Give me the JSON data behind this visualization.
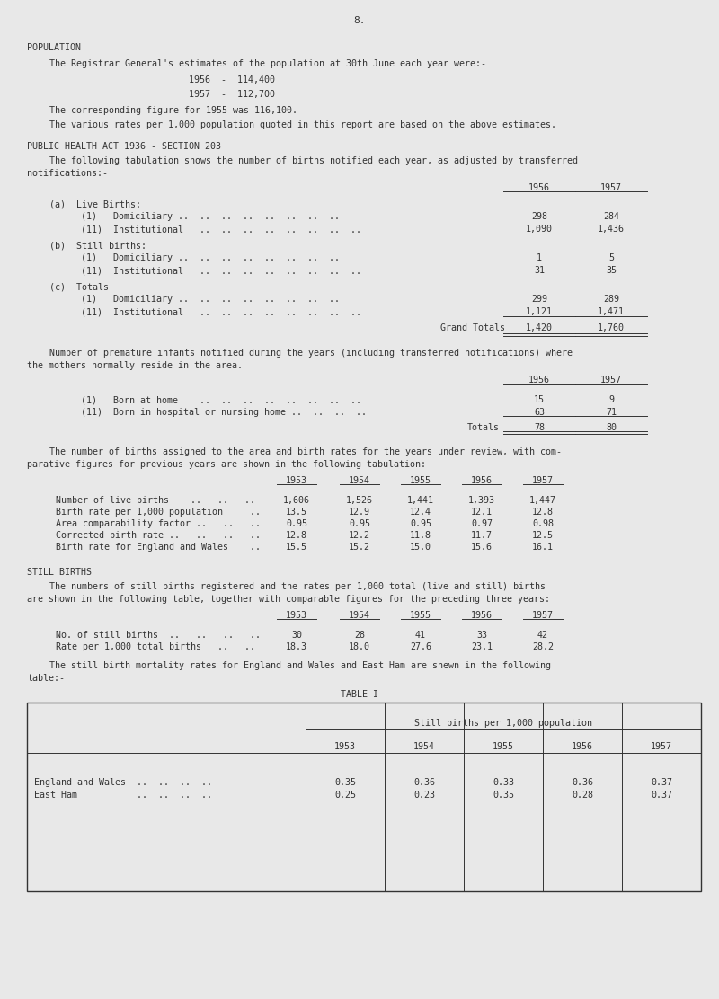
{
  "page_number": "8.",
  "bg_color": "#e8e8e8",
  "text_color": "#333333",
  "section1_heading": "POPULATION",
  "section1_intro": "The Registrar General's estimates of the population at 30th June each year were:-",
  "pop_1956_label": "1956  -  114,400",
  "pop_1957_label": "1957  -  112,700",
  "pop_1955_note": "The corresponding figure for 1955 was 116,100.",
  "pop_rates_note": "The various rates per 1,000 population quoted in this report are based on the above estimates.",
  "section2_heading": "PUBLIC HEALTH ACT 1936 - SECTION 203",
  "section2_line1": "The following tabulation shows the number of births notified each year, as adjusted by transferred",
  "section2_line2": "notifications:-",
  "col1956": "1956",
  "col1957": "1957",
  "live_label": "(a)  Live Births:",
  "dom_row": "(1)   Domiciliary ..  ..  ..  ..  ..  ..  ..  ..",
  "dom_56": "298",
  "dom_57": "284",
  "inst_row": "(11)  Institutional   ..  ..  ..  ..  ..  ..  ..  ..",
  "inst_56": "1,090",
  "inst_57": "1,436",
  "still_label": "(b)  Still births:",
  "sdom_row": "(1)   Domiciliary ..  ..  ..  ..  ..  ..  ..  ..",
  "sdom_56": "1",
  "sdom_57": "5",
  "sinst_row": "(11)  Institutional   ..  ..  ..  ..  ..  ..  ..  ..",
  "sinst_56": "31",
  "sinst_57": "35",
  "totals_label": "(c)  Totals",
  "tdom_row": "(1)   Domiciliary ..  ..  ..  ..  ..  ..  ..  ..",
  "tdom_56": "299",
  "tdom_57": "289",
  "tinst_row": "(11)  Institutional   ..  ..  ..  ..  ..  ..  ..  ..",
  "tinst_56": "1,121",
  "tinst_57": "1,471",
  "grand_label": "Grand Totals",
  "grand_56": "1,420",
  "grand_57": "1,760",
  "prem_line1": "Number of premature infants notified during the years (including transferred notifications) where",
  "prem_line2": "the mothers normally reside in the area.",
  "prem_home_row": "(1)   Born at home    ..  ..  ..  ..  ..  ..  ..  ..",
  "prem_home_56": "15",
  "prem_home_57": "9",
  "prem_hosp_row": "(11)  Born in hospital or nursing home ..  ..  ..  ..",
  "prem_hosp_56": "63",
  "prem_hosp_57": "71",
  "prem_tot_label": "Totals",
  "prem_tot_56": "78",
  "prem_tot_57": "80",
  "births_line1": "The number of births assigned to the area and birth rates for the years under review, with com-",
  "births_line2": "parative figures for previous years are shown in the following tabulation:",
  "births_years": [
    "1953",
    "1954",
    "1955",
    "1956",
    "1957"
  ],
  "births_rows": [
    {
      "label": "Number of live births    ..   ..   ..",
      "values": [
        "1,606",
        "1,526",
        "1,441",
        "1,393",
        "1,447"
      ]
    },
    {
      "label": "Birth rate per 1,000 population     ..",
      "values": [
        "13.5",
        "12.9",
        "12.4",
        "12.1",
        "12.8"
      ]
    },
    {
      "label": "Area comparability factor ..   ..   ..",
      "values": [
        "0.95",
        "0.95",
        "0.95",
        "0.97",
        "0.98"
      ]
    },
    {
      "label": "Corrected birth rate ..   ..   ..   ..",
      "values": [
        "12.8",
        "12.2",
        "11.8",
        "11.7",
        "12.5"
      ]
    },
    {
      "label": "Birth rate for England and Wales    ..",
      "values": [
        "15.5",
        "15.2",
        "15.0",
        "15.6",
        "16.1"
      ]
    }
  ],
  "still_heading": "STILL BIRTHS",
  "still_line1": "The numbers of still births registered and the rates per 1,000 total (live and still) births",
  "still_line2": "are shown in the following table, together with comparable figures for the preceding three years:",
  "still_years": [
    "1953",
    "1954",
    "1955",
    "1956",
    "1957"
  ],
  "still_rows": [
    {
      "label": "No. of still births  ..   ..   ..   ..",
      "values": [
        "30",
        "28",
        "41",
        "33",
        "42"
      ]
    },
    {
      "label": "Rate per 1,000 total births   ..   ..",
      "values": [
        "18.3",
        "18.0",
        "27.6",
        "23.1",
        "28.2"
      ]
    }
  ],
  "t1_line1": "The still birth mortality rates for England and Wales and East Ham are shewn in the following",
  "t1_line2": "table:-",
  "t1_title": "TABLE I",
  "t1_header": "Still births per 1,000 population",
  "t1_years": [
    "1953",
    "1954",
    "1955",
    "1956",
    "1957"
  ],
  "t1_rows": [
    {
      "label": "England and Wales  ..  ..  ..  ..",
      "values": [
        "0.35",
        "0.36",
        "0.33",
        "0.36",
        "0.37"
      ]
    },
    {
      "label": "East Ham           ..  ..  ..  ..",
      "values": [
        "0.25",
        "0.23",
        "0.35",
        "0.28",
        "0.37"
      ]
    }
  ]
}
